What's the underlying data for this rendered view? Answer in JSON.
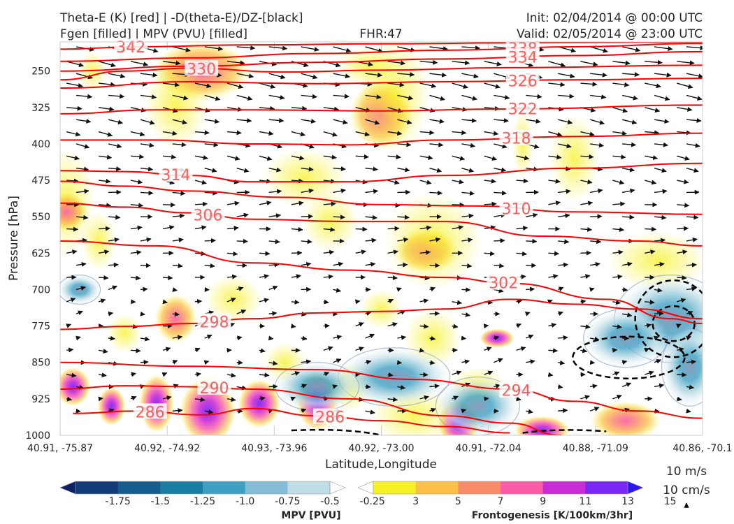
{
  "header": {
    "title_left_1": "Theta-E (K) [red] | -D(theta-E)/DZ-[black]",
    "title_left_2": "Fgen [filled] | MPV (PVU) [filled]",
    "fhr": "FHR:47",
    "init": "Init: 02/04/2014 @ 00:00 UTC",
    "valid": "Valid: 02/05/2014 @ 23:00 UTC"
  },
  "chart_data": {
    "type": "cross-section",
    "xlabel": "Latitude,Longitude",
    "ylabel": "Pressure [hPa]",
    "x_ticks": [
      "40.91, -75.87",
      "40.92, -74.92",
      "40.93, -73.96",
      "40.92, -73.00",
      "40.91, -72.04",
      "40.88, -71.09",
      "40.86, -70.1"
    ],
    "y_ticks": [
      250,
      325,
      400,
      475,
      550,
      625,
      700,
      775,
      850,
      925,
      1000
    ],
    "ylim": [
      1000,
      190
    ],
    "theta_e_contours": [
      {
        "label": "342",
        "points": [
          [
            0,
            205
          ],
          [
            0.12,
            200
          ],
          [
            0.3,
            196
          ],
          [
            0.5,
            194
          ],
          [
            0.7,
            192
          ],
          [
            1,
            190
          ]
        ]
      },
      {
        "label": "338",
        "points": [
          [
            0,
            230
          ],
          [
            0.2,
            223
          ],
          [
            0.4,
            214
          ],
          [
            0.6,
            207
          ],
          [
            0.8,
            200
          ],
          [
            1,
            193
          ]
        ]
      },
      {
        "label": "334",
        "points": [
          [
            0,
            250
          ],
          [
            0.2,
            240
          ],
          [
            0.4,
            232
          ],
          [
            0.6,
            225
          ],
          [
            0.8,
            218
          ],
          [
            1,
            210
          ]
        ]
      },
      {
        "label": "330",
        "points": [
          [
            0,
            268
          ],
          [
            0.1,
            250
          ],
          [
            0.2,
            244
          ],
          [
            0.35,
            252
          ],
          [
            0.5,
            248
          ],
          [
            0.7,
            243
          ],
          [
            1,
            238
          ]
        ]
      },
      {
        "label": "326",
        "points": [
          [
            0,
            285
          ],
          [
            0.2,
            272
          ],
          [
            0.4,
            276
          ],
          [
            0.6,
            272
          ],
          [
            0.8,
            268
          ],
          [
            1,
            265
          ]
        ]
      },
      {
        "label": "322",
        "points": [
          [
            0,
            338
          ],
          [
            0.15,
            330
          ],
          [
            0.3,
            330
          ],
          [
            0.5,
            332
          ],
          [
            0.7,
            328
          ],
          [
            1,
            320
          ]
        ]
      },
      {
        "label": "318",
        "points": [
          [
            0,
            392
          ],
          [
            0.15,
            392
          ],
          [
            0.3,
            400
          ],
          [
            0.45,
            402
          ],
          [
            0.6,
            392
          ],
          [
            0.8,
            385
          ],
          [
            1,
            378
          ]
        ]
      },
      {
        "label": "314",
        "points": [
          [
            0,
            455
          ],
          [
            0.1,
            457
          ],
          [
            0.2,
            465
          ],
          [
            0.3,
            478
          ],
          [
            0.45,
            478
          ],
          [
            0.6,
            465
          ],
          [
            0.8,
            450
          ],
          [
            1,
            440
          ]
        ]
      },
      {
        "label": "310",
        "points": [
          [
            0,
            477
          ],
          [
            0.1,
            487
          ],
          [
            0.2,
            497
          ],
          [
            0.35,
            510
          ],
          [
            0.5,
            525
          ],
          [
            0.65,
            528
          ],
          [
            0.8,
            540
          ],
          [
            1,
            545
          ]
        ]
      },
      {
        "label": "306",
        "points": [
          [
            0,
            522
          ],
          [
            0.1,
            530
          ],
          [
            0.2,
            542
          ],
          [
            0.3,
            555
          ],
          [
            0.45,
            560
          ],
          [
            0.6,
            560
          ],
          [
            0.75,
            590
          ],
          [
            0.9,
            600
          ],
          [
            1,
            610
          ]
        ]
      },
      {
        "label": "302",
        "points": [
          [
            0,
            600
          ],
          [
            0.15,
            610
          ],
          [
            0.3,
            645
          ],
          [
            0.45,
            660
          ],
          [
            0.6,
            675
          ],
          [
            0.7,
            687
          ],
          [
            0.85,
            720
          ],
          [
            0.95,
            760
          ],
          [
            1,
            770
          ]
        ]
      },
      {
        "label": "298",
        "points": [
          [
            0,
            782
          ],
          [
            0.1,
            776
          ],
          [
            0.2,
            770
          ],
          [
            0.3,
            760
          ],
          [
            0.4,
            748
          ],
          [
            0.5,
            745
          ],
          [
            0.6,
            740
          ],
          [
            0.7,
            720
          ],
          [
            0.8,
            730
          ],
          [
            0.9,
            740
          ],
          [
            1,
            760
          ]
        ]
      },
      {
        "label": "294",
        "points": [
          [
            0,
            850
          ],
          [
            0.2,
            858
          ],
          [
            0.4,
            865
          ],
          [
            0.55,
            885
          ],
          [
            0.7,
            905
          ],
          [
            0.8,
            930
          ],
          [
            0.9,
            950
          ],
          [
            1,
            965
          ]
        ]
      },
      {
        "label": "290",
        "points": [
          [
            0,
            905
          ],
          [
            0.1,
            898
          ],
          [
            0.2,
            900
          ],
          [
            0.3,
            905
          ],
          [
            0.45,
            925
          ],
          [
            0.6,
            960
          ],
          [
            0.7,
            975
          ],
          [
            0.78,
            1000
          ]
        ]
      },
      {
        "label": "286",
        "points": [
          [
            0.02,
            955
          ],
          [
            0.12,
            950
          ],
          [
            0.22,
            958
          ],
          [
            0.3,
            945
          ],
          [
            0.4,
            960
          ],
          [
            0.5,
            970
          ],
          [
            0.6,
            982
          ],
          [
            0.7,
            995
          ]
        ]
      }
    ],
    "fgen_colorbar": {
      "label": "Frontogenesis [K/100km/3hr]",
      "levels": [
        3,
        5,
        7,
        9,
        11,
        13,
        15
      ],
      "colors": [
        "#ffffff",
        "#f6f126",
        "#fbbf45",
        "#fa8c6c",
        "#fb5ba7",
        "#c72cd6",
        "#7b27f5",
        "#2b18f6"
      ]
    },
    "mpv_colorbar": {
      "label": "MPV [PVU]",
      "levels": [
        -1.75,
        -1.5,
        -1.25,
        -1.0,
        -0.75,
        -0.5,
        -0.25
      ],
      "colors": [
        "#0d2163",
        "#123b7a",
        "#155d8e",
        "#1a7da4",
        "#3ea0c2",
        "#83bcd4",
        "#bedde6",
        "#ffffff"
      ]
    },
    "wind_scale": {
      "u_label": "10 m/s",
      "w_label": "10 cm/s"
    },
    "theta_e_label_color": "#ff5b5b",
    "theta_e_line_color": "#ff0000",
    "fgen_fill_color": "#f6f126",
    "mpv_fill_color": "#cfe5ee",
    "wind_color": "#111111"
  }
}
